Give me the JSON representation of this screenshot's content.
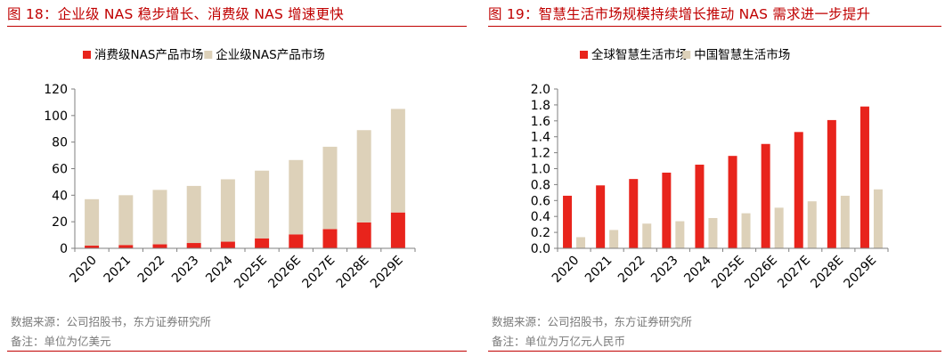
{
  "colors": {
    "red": "#e8241c",
    "beige": "#ddd1b9",
    "title_red": "#c00000",
    "axis": "#7f7f7f",
    "text": "#000000",
    "note": "#7a7a7a"
  },
  "left": {
    "title": "图 18：企业级 NAS 稳步增长、消费级 NAS 增速更快",
    "source": "数据来源：公司招股书，东方证券研究所",
    "note": "备注：单位为亿美元",
    "chart_data": {
      "type": "bar",
      "stacked": true,
      "categories": [
        "2020",
        "2021",
        "2022",
        "2023",
        "2024",
        "2025E",
        "2026E",
        "2027E",
        "2028E",
        "2029E"
      ],
      "series": [
        {
          "name": "消费级NAS产品市场",
          "color": "#e8241c",
          "values": [
            2,
            2.5,
            3,
            4,
            5,
            7.5,
            10.5,
            14.5,
            19.5,
            27
          ]
        },
        {
          "name": "企业级NAS产品市场",
          "color": "#ddd1b9",
          "values": [
            35,
            37.5,
            41,
            43,
            47,
            51,
            56,
            62,
            69.5,
            78
          ]
        }
      ],
      "ylim": [
        0,
        120
      ],
      "yticks": [
        "0",
        "20",
        "40",
        "60",
        "80",
        "100",
        "120"
      ],
      "legend_position": "top",
      "grid": false
    }
  },
  "right": {
    "title": "图 19：智慧生活市场规模持续增长推动 NAS 需求进一步提升",
    "source": "数据来源：公司招股书，东方证券研究所",
    "note": "备注：单位为万亿元人民币",
    "chart_data": {
      "type": "bar",
      "stacked": false,
      "categories": [
        "2020",
        "2021",
        "2022",
        "2023",
        "2024",
        "2025E",
        "2026E",
        "2027E",
        "2028E",
        "2029E"
      ],
      "series": [
        {
          "name": "全球智慧生活市场",
          "color": "#e8241c",
          "values": [
            0.66,
            0.79,
            0.87,
            0.95,
            1.05,
            1.16,
            1.31,
            1.46,
            1.61,
            1.78
          ]
        },
        {
          "name": "中国智慧生活市场",
          "color": "#ddd1b9",
          "values": [
            0.14,
            0.23,
            0.31,
            0.34,
            0.38,
            0.44,
            0.51,
            0.59,
            0.66,
            0.74
          ]
        }
      ],
      "ylim": [
        0,
        2.0
      ],
      "yticks": [
        "0.0",
        "0.2",
        "0.4",
        "0.6",
        "0.8",
        "1.0",
        "1.2",
        "1.4",
        "1.6",
        "1.8",
        "2.0"
      ],
      "legend_position": "top",
      "grid": false
    }
  }
}
